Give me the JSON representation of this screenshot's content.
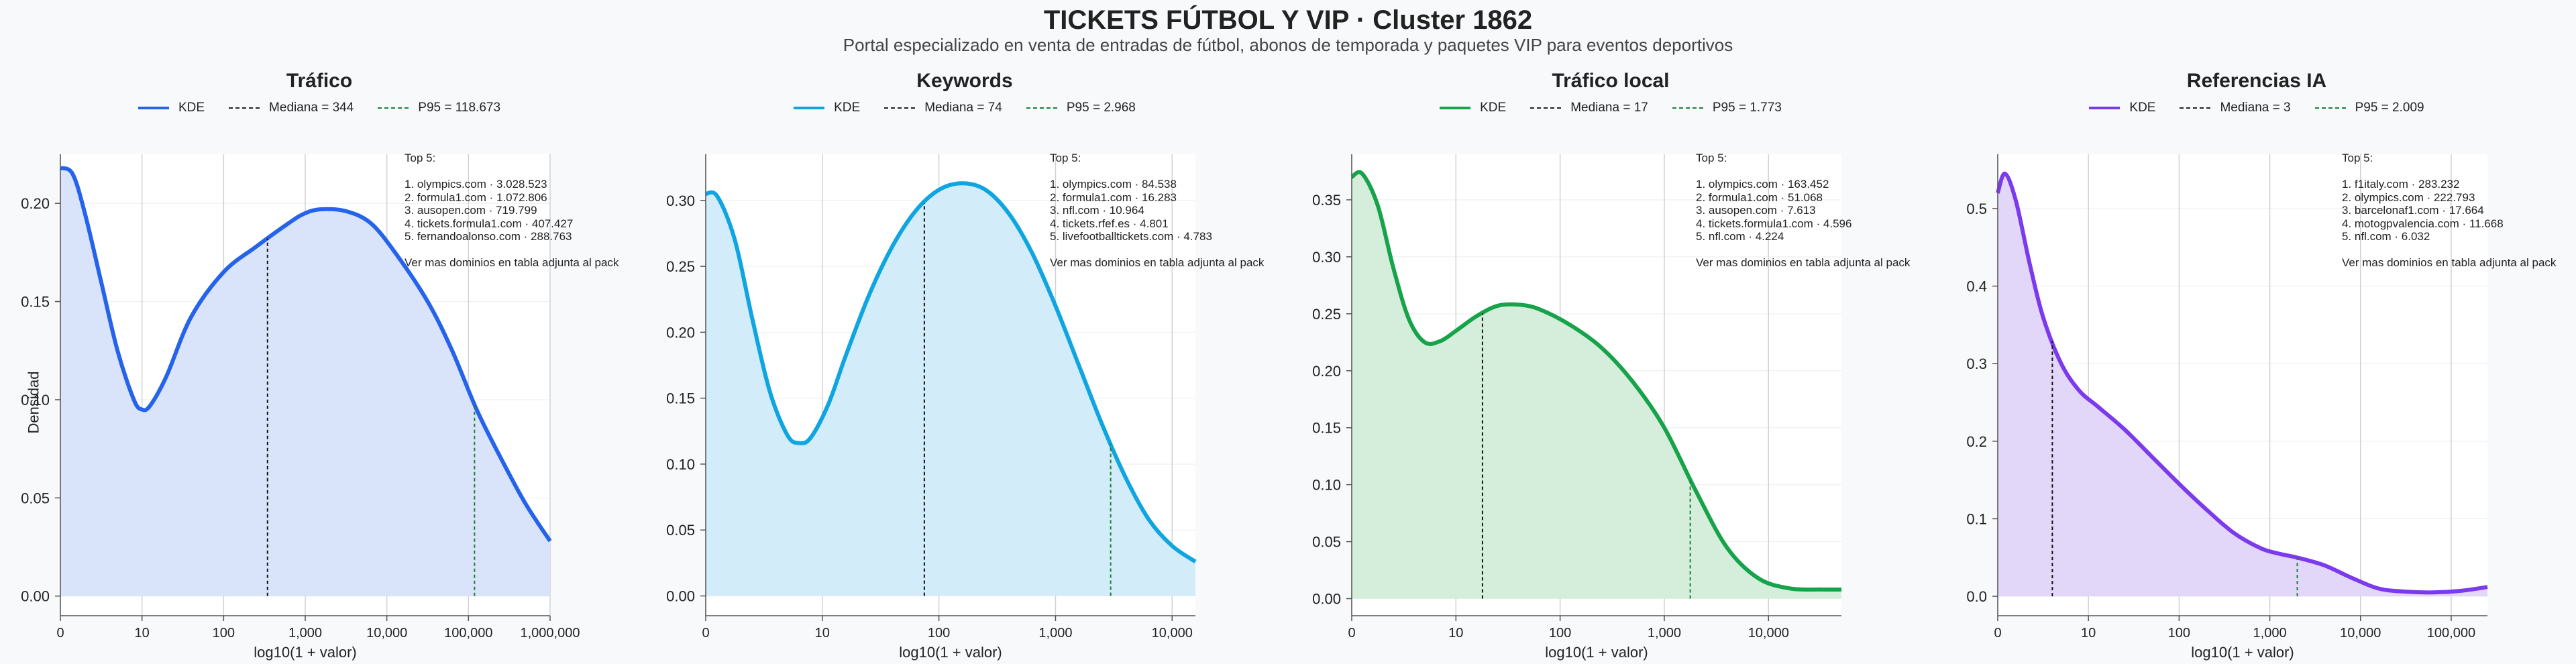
{
  "title": "TICKETS FÚTBOL Y VIP · Cluster 1862",
  "subtitle": "Portal especializado en venta de entradas de fútbol, abonos de temporada y paquetes VIP para eventos deportivos",
  "ylabel": "Densidad",
  "xlabel": "log10(1 + valor)",
  "top5_header": "Top 5:",
  "top5_footer": "Ver mas dominios en tabla adjunta al pack",
  "chart_data": [
    {
      "type": "area",
      "title": "Tráfico",
      "color": "#2563eb",
      "fill": "#d9e3f9",
      "p95_color": "#1a7f37",
      "legend": [
        "KDE",
        "Mediana = 344",
        "P95 = 118.673"
      ],
      "xlim": [
        0,
        6
      ],
      "ylim": [
        -0.01,
        0.225
      ],
      "yticks": [
        0.0,
        0.05,
        0.1,
        0.15,
        0.2
      ],
      "ytick_labels": [
        "0.00",
        "0.05",
        "0.10",
        "0.15",
        "0.20"
      ],
      "xticks": [
        0,
        1,
        2,
        3,
        4,
        5,
        6
      ],
      "xtick_labels": [
        "0",
        "10",
        "100",
        "1,000",
        "10,000",
        "100,000",
        "1,000,000"
      ],
      "median_log": 2.538,
      "p95_log": 5.074,
      "x": [
        0,
        0.15,
        0.3,
        0.5,
        0.7,
        0.9,
        1.0,
        1.1,
        1.3,
        1.6,
        2.0,
        2.4,
        2.8,
        3.0,
        3.2,
        3.5,
        3.8,
        4.1,
        4.5,
        4.8,
        5.1,
        5.4,
        5.7,
        6.0
      ],
      "y": [
        0.218,
        0.215,
        0.195,
        0.16,
        0.125,
        0.1,
        0.095,
        0.097,
        0.112,
        0.142,
        0.165,
        0.178,
        0.19,
        0.195,
        0.197,
        0.196,
        0.19,
        0.175,
        0.15,
        0.125,
        0.095,
        0.07,
        0.047,
        0.028
      ],
      "top5": [
        "1. olympics.com · 3.028.523",
        "2. formula1.com · 1.072.806",
        "3. ausopen.com · 719.799",
        "4. tickets.formula1.com · 407.427",
        "5. fernandoalonso.com · 288.763"
      ]
    },
    {
      "type": "area",
      "title": "Keywords",
      "color": "#0ea5e0",
      "fill": "#d2ecf9",
      "p95_color": "#1a7f37",
      "legend": [
        "KDE",
        "Mediana = 74",
        "P95 = 2.968"
      ],
      "xlim": [
        0,
        4.2
      ],
      "ylim": [
        -0.015,
        0.335
      ],
      "yticks": [
        0.0,
        0.05,
        0.1,
        0.15,
        0.2,
        0.25,
        0.3
      ],
      "ytick_labels": [
        "0.00",
        "0.05",
        "0.10",
        "0.15",
        "0.20",
        "0.25",
        "0.30"
      ],
      "xticks": [
        0,
        1,
        2,
        3,
        4
      ],
      "xtick_labels": [
        "0",
        "10",
        "100",
        "1,000",
        "10,000"
      ],
      "median_log": 1.875,
      "p95_log": 3.473,
      "x": [
        0,
        0.1,
        0.25,
        0.4,
        0.55,
        0.7,
        0.8,
        0.9,
        1.05,
        1.2,
        1.4,
        1.6,
        1.8,
        2.0,
        2.2,
        2.4,
        2.6,
        2.8,
        3.0,
        3.2,
        3.4,
        3.6,
        3.8,
        4.0,
        4.2
      ],
      "y": [
        0.305,
        0.303,
        0.27,
        0.21,
        0.155,
        0.122,
        0.116,
        0.12,
        0.145,
        0.182,
        0.228,
        0.265,
        0.292,
        0.308,
        0.313,
        0.308,
        0.29,
        0.26,
        0.22,
        0.175,
        0.13,
        0.09,
        0.058,
        0.038,
        0.026
      ],
      "top5": [
        "1. olympics.com · 84.538",
        "2. formula1.com · 16.283",
        "3. nfl.com · 10.964",
        "4. tickets.rfef.es · 4.801",
        "5. livefootballtickets.com · 4.783"
      ]
    },
    {
      "type": "area",
      "title": "Tráfico local",
      "color": "#16a34a",
      "fill": "#d4eedb",
      "p95_color": "#1a7f37",
      "legend": [
        "KDE",
        "Mediana = 17",
        "P95 = 1.773"
      ],
      "xlim": [
        0,
        4.7
      ],
      "ylim": [
        -0.015,
        0.39
      ],
      "yticks": [
        0.0,
        0.05,
        0.1,
        0.15,
        0.2,
        0.25,
        0.3,
        0.35
      ],
      "ytick_labels": [
        "0.00",
        "0.05",
        "0.10",
        "0.15",
        "0.20",
        "0.25",
        "0.30",
        "0.35"
      ],
      "xticks": [
        0,
        1,
        2,
        3,
        4
      ],
      "xtick_labels": [
        "0",
        "10",
        "100",
        "1,000",
        "10,000"
      ],
      "median_log": 1.255,
      "p95_log": 3.249,
      "x": [
        0,
        0.1,
        0.25,
        0.4,
        0.55,
        0.7,
        0.85,
        1.0,
        1.2,
        1.4,
        1.6,
        1.8,
        2.1,
        2.4,
        2.7,
        3.0,
        3.3,
        3.6,
        3.9,
        4.2,
        4.5,
        4.7
      ],
      "y": [
        0.37,
        0.373,
        0.345,
        0.29,
        0.245,
        0.225,
        0.226,
        0.235,
        0.248,
        0.257,
        0.258,
        0.254,
        0.24,
        0.22,
        0.19,
        0.15,
        0.095,
        0.045,
        0.018,
        0.009,
        0.008,
        0.008
      ],
      "top5": [
        "1. olympics.com · 163.452",
        "2. formula1.com · 51.068",
        "3. ausopen.com · 7.613",
        "4. tickets.formula1.com · 4.596",
        "5. nfl.com · 4.224"
      ]
    },
    {
      "type": "area",
      "title": "Referencias IA",
      "color": "#7c3aed",
      "fill": "#e3d7f9",
      "p95_color": "#1a7f37",
      "legend": [
        "KDE",
        "Mediana = 3",
        "P95 = 2.009"
      ],
      "xlim": [
        0,
        5.4
      ],
      "ylim": [
        -0.025,
        0.57
      ],
      "yticks": [
        0.0,
        0.1,
        0.2,
        0.3,
        0.4,
        0.5
      ],
      "ytick_labels": [
        "0.0",
        "0.1",
        "0.2",
        "0.3",
        "0.4",
        "0.5"
      ],
      "xticks": [
        0,
        1,
        2,
        3,
        4,
        5
      ],
      "xtick_labels": [
        "0",
        "10",
        "100",
        "1,000",
        "10,000",
        "100,000"
      ],
      "median_log": 0.602,
      "p95_log": 3.303,
      "x": [
        0,
        0.08,
        0.2,
        0.35,
        0.5,
        0.7,
        0.9,
        1.1,
        1.4,
        1.7,
        2.0,
        2.3,
        2.6,
        2.9,
        3.1,
        3.3,
        3.6,
        3.9,
        4.2,
        4.5,
        4.8,
        5.1,
        5.4
      ],
      "y": [
        0.52,
        0.545,
        0.51,
        0.43,
        0.36,
        0.3,
        0.265,
        0.245,
        0.215,
        0.18,
        0.145,
        0.112,
        0.082,
        0.062,
        0.055,
        0.05,
        0.04,
        0.024,
        0.01,
        0.006,
        0.005,
        0.007,
        0.012
      ],
      "top5": [
        "1. f1italy.com · 283.232",
        "2. olympics.com · 222.793",
        "3. barcelonaf1.com · 17.664",
        "4. motogpvalencia.com · 11.668",
        "5. nfl.com · 6.032"
      ]
    }
  ]
}
